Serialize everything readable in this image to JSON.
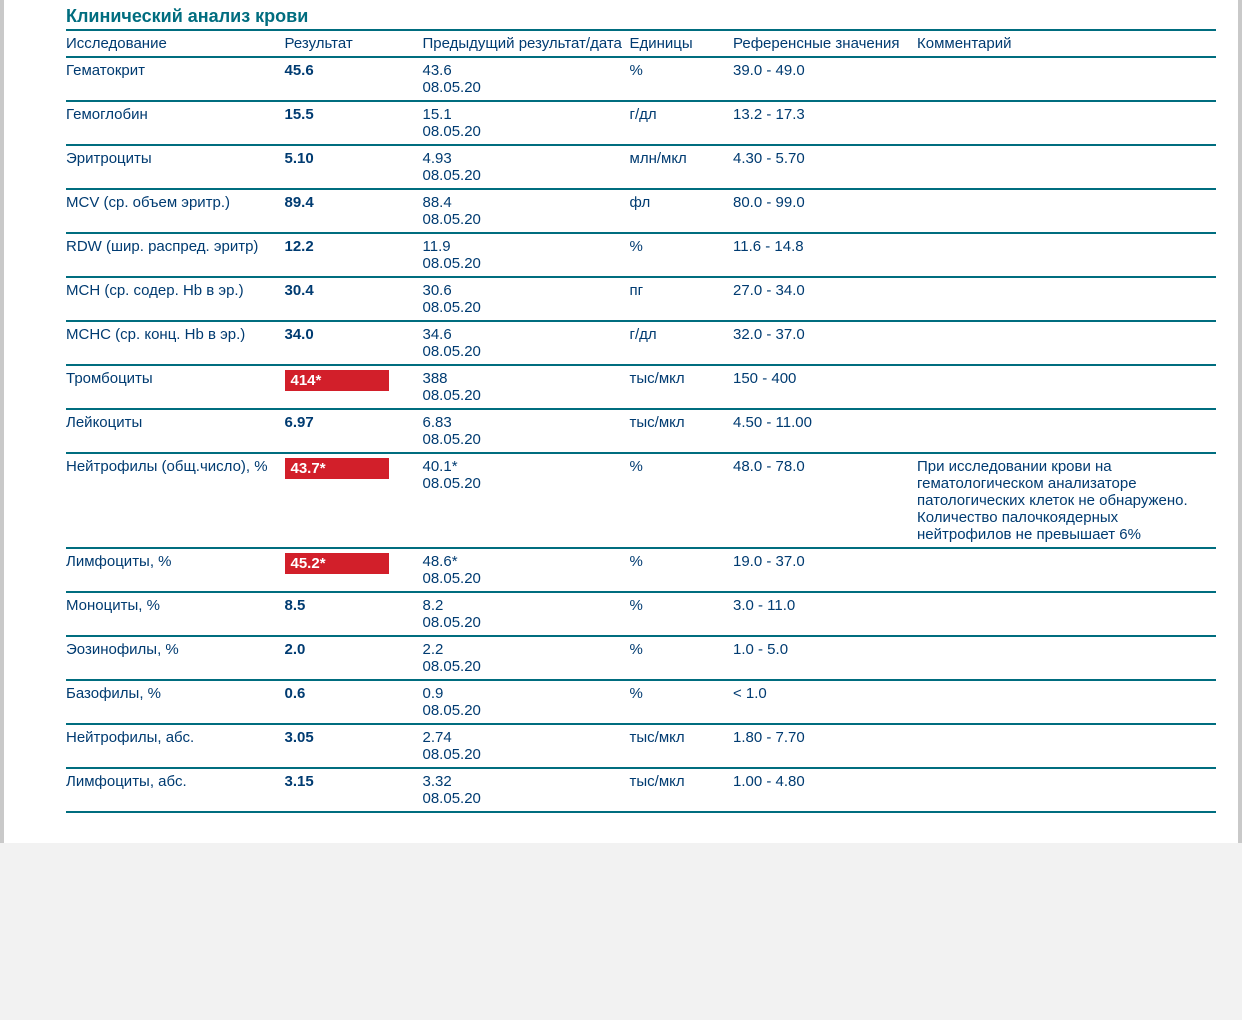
{
  "colors": {
    "text": "#003b71",
    "accent": "#006d7f",
    "flag_bg": "#d21f2a",
    "flag_text": "#ffffff",
    "page_bg": "#ffffff",
    "outer_border": "#c9c9c9"
  },
  "section_title": "Клинический анализ крови",
  "columns": {
    "test": "Исследование",
    "result": "Результат",
    "previous": "Предыдущий результат/дата",
    "units": "Единицы",
    "reference": "Референсные значения",
    "comment": "Комментарий"
  },
  "rows": [
    {
      "test": "Гематокрит",
      "result": "45.6",
      "flag": false,
      "prev_value": "43.6",
      "prev_date": "08.05.20",
      "units": "%",
      "reference": "39.0 - 49.0",
      "comment": ""
    },
    {
      "test": "Гемоглобин",
      "result": "15.5",
      "flag": false,
      "prev_value": "15.1",
      "prev_date": "08.05.20",
      "units": "г/дл",
      "reference": "13.2 - 17.3",
      "comment": ""
    },
    {
      "test": "Эритроциты",
      "result": "5.10",
      "flag": false,
      "prev_value": "4.93",
      "prev_date": "08.05.20",
      "units": "млн/мкл",
      "reference": "4.30 - 5.70",
      "comment": ""
    },
    {
      "test": "MCV (ср. объем эритр.)",
      "result": "89.4",
      "flag": false,
      "prev_value": "88.4",
      "prev_date": "08.05.20",
      "units": "фл",
      "reference": "80.0 - 99.0",
      "comment": ""
    },
    {
      "test": "RDW (шир. распред. эритр)",
      "result": "12.2",
      "flag": false,
      "prev_value": "11.9",
      "prev_date": "08.05.20",
      "units": "%",
      "reference": "11.6 - 14.8",
      "comment": ""
    },
    {
      "test": "MCH (ср. содер. Hb в эр.)",
      "result": "30.4",
      "flag": false,
      "prev_value": "30.6",
      "prev_date": "08.05.20",
      "units": "пг",
      "reference": "27.0 - 34.0",
      "comment": ""
    },
    {
      "test": "MCHC (ср. конц. Hb в эр.)",
      "result": "34.0",
      "flag": false,
      "prev_value": "34.6",
      "prev_date": "08.05.20",
      "units": "г/дл",
      "reference": "32.0 - 37.0",
      "comment": ""
    },
    {
      "test": "Тромбоциты",
      "result": "414*",
      "flag": true,
      "prev_value": "388",
      "prev_date": "08.05.20",
      "units": "тыс/мкл",
      "reference": "150 - 400",
      "comment": ""
    },
    {
      "test": "Лейкоциты",
      "result": "6.97",
      "flag": false,
      "prev_value": "6.83",
      "prev_date": "08.05.20",
      "units": "тыс/мкл",
      "reference": "4.50 - 11.00",
      "comment": ""
    },
    {
      "test": "Нейтрофилы (общ.число), %",
      "result": "43.7*",
      "flag": true,
      "prev_value": "40.1*",
      "prev_date": "08.05.20",
      "units": "%",
      "reference": "48.0 - 78.0",
      "comment": "При исследовании крови на гематологическом анализаторе патологических клеток не обнаружено. Количество палочкоядерных нейтрофилов не превышает 6%"
    },
    {
      "test": "Лимфоциты, %",
      "result": "45.2*",
      "flag": true,
      "prev_value": "48.6*",
      "prev_date": "08.05.20",
      "units": "%",
      "reference": "19.0 - 37.0",
      "comment": ""
    },
    {
      "test": "Моноциты, %",
      "result": "8.5",
      "flag": false,
      "prev_value": "8.2",
      "prev_date": "08.05.20",
      "units": "%",
      "reference": "3.0 - 11.0",
      "comment": ""
    },
    {
      "test": "Эозинофилы, %",
      "result": "2.0",
      "flag": false,
      "prev_value": "2.2",
      "prev_date": "08.05.20",
      "units": "%",
      "reference": "1.0 - 5.0",
      "comment": ""
    },
    {
      "test": "Базофилы, %",
      "result": "0.6",
      "flag": false,
      "prev_value": "0.9",
      "prev_date": "08.05.20",
      "units": "%",
      "reference": "< 1.0",
      "comment": ""
    },
    {
      "test": "Нейтрофилы, абс.",
      "result": "3.05",
      "flag": false,
      "prev_value": "2.74",
      "prev_date": "08.05.20",
      "units": "тыс/мкл",
      "reference": "1.80 - 7.70",
      "comment": ""
    },
    {
      "test": "Лимфоциты, абс.",
      "result": "3.15",
      "flag": false,
      "prev_value": "3.32",
      "prev_date": "08.05.20",
      "units": "тыс/мкл",
      "reference": "1.00 - 4.80",
      "comment": ""
    }
  ]
}
